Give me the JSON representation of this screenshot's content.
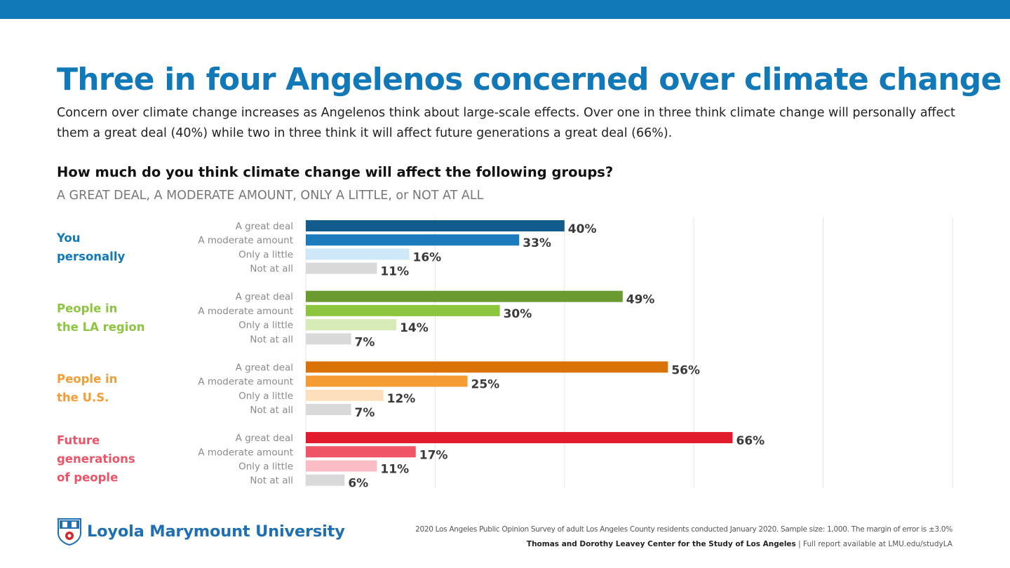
{
  "header": {
    "title": "Three in four Angelenos concerned over climate change",
    "subtitle": "Concern over climate change increases as Angelenos think about large-scale effects. Over one in three think climate change will personally affect them a great deal (40%) while two in three think it will affect future generations a great deal (66%)."
  },
  "question": "How much do you think climate change will affect the following groups?",
  "options_line": "A GREAT DEAL, A MODERATE AMOUNT, ONLY A LITTLE, or NOT AT ALL",
  "chart_data": {
    "type": "bar",
    "orientation": "horizontal",
    "categories": [
      "A great deal",
      "A moderate amount",
      "Only a little",
      "Not at all"
    ],
    "value_suffix": "%",
    "xlim": [
      0,
      100
    ],
    "gridlines": [
      0,
      20,
      40,
      60,
      80,
      100
    ],
    "groups": [
      {
        "label_lines": [
          "You",
          "personally"
        ],
        "label_color": "#1279b8",
        "values": [
          40,
          33,
          16,
          11
        ],
        "colors": [
          "#115c8c",
          "#1b7bbd",
          "#cfe8f7",
          "#d9d9d9"
        ]
      },
      {
        "label_lines": [
          "People in",
          "the LA region"
        ],
        "label_color": "#8cc63f",
        "values": [
          49,
          30,
          14,
          7
        ],
        "colors": [
          "#6a9a30",
          "#8cc63f",
          "#d6ebb5",
          "#d9d9d9"
        ]
      },
      {
        "label_lines": [
          "People in",
          "the U.S."
        ],
        "label_color": "#f59c35",
        "values": [
          56,
          25,
          12,
          7
        ],
        "colors": [
          "#d97207",
          "#f59c35",
          "#fde0bb",
          "#d9d9d9"
        ]
      },
      {
        "label_lines": [
          "Future",
          "generations",
          "of people"
        ],
        "label_color": "#ec5568",
        "values": [
          66,
          17,
          11,
          6
        ],
        "colors": [
          "#e11b2b",
          "#ef5567",
          "#fbbcc5",
          "#d9d9d9"
        ]
      }
    ]
  },
  "footer": {
    "university": "Loyola Marymount University",
    "source_line1": "2020 Los Angeles Public Opinion Survey of adult Los Angeles County residents conducted January 2020. Sample size: 1,000. The margin of error is ±3.0%",
    "center_name": "Thomas and Dorothy Leavey Center for the Study of Los Angeles",
    "report_text": " | Full report available at LMU.edu/studyLA"
  },
  "colors": {
    "brand_blue": "#1279b8",
    "grid": "#e6e6e6"
  }
}
